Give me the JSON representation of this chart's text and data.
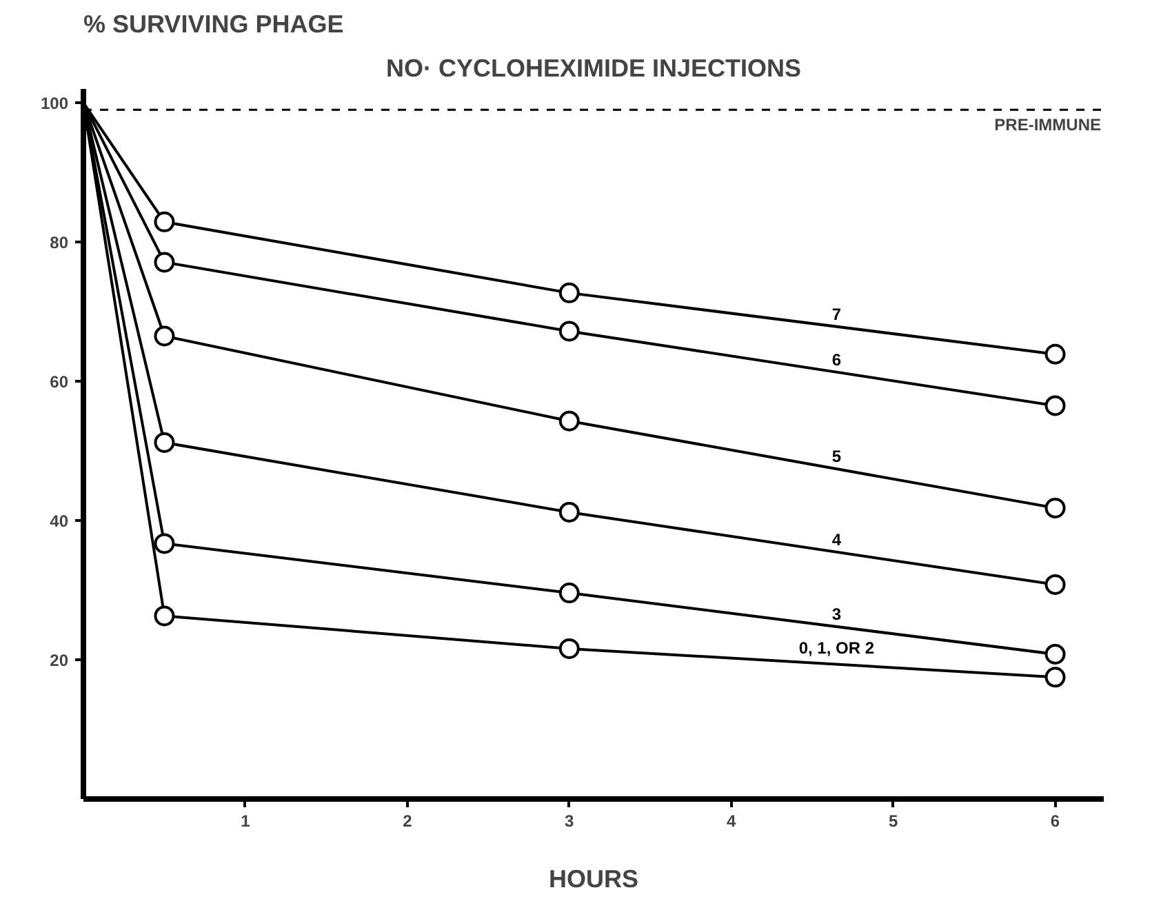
{
  "chart_data": {
    "type": "line",
    "title": "NO· CYCLOHEXIMIDE INJECTIONS",
    "ylabel": "% SURVIVING PHAGE",
    "xlabel": "HOURS",
    "x": [
      0,
      0.5,
      3,
      6
    ],
    "series": [
      {
        "name": "7",
        "color": "#000000",
        "values": [
          100,
          82.9,
          72.7,
          63.9
        ]
      },
      {
        "name": "6",
        "color": "#000000",
        "values": [
          100,
          77.1,
          67.2,
          56.5
        ]
      },
      {
        "name": "5",
        "color": "#000000",
        "values": [
          100,
          66.5,
          54.3,
          41.8
        ]
      },
      {
        "name": "4",
        "color": "#000000",
        "values": [
          100,
          51.2,
          41.2,
          30.8
        ]
      },
      {
        "name": "3",
        "color": "#000000",
        "values": [
          100,
          36.7,
          29.6,
          20.8
        ]
      },
      {
        "name": "0, 1, OR 2",
        "color": "#000000",
        "values": [
          100,
          26.3,
          21.6,
          17.5
        ]
      }
    ],
    "xlim": [
      0,
      6.3
    ],
    "ylim": [
      0,
      102
    ],
    "xticks": [
      1,
      2,
      3,
      4,
      5,
      6
    ],
    "yticks": [
      20,
      40,
      60,
      80,
      100
    ],
    "ref_lines": [
      {
        "axis": "y",
        "value": 99,
        "label": "PRE-IMMUNE",
        "line_style": "dashed",
        "color": "#000000"
      }
    ],
    "grid": false,
    "legend": false,
    "marker": "circle",
    "line_style": "solid"
  }
}
